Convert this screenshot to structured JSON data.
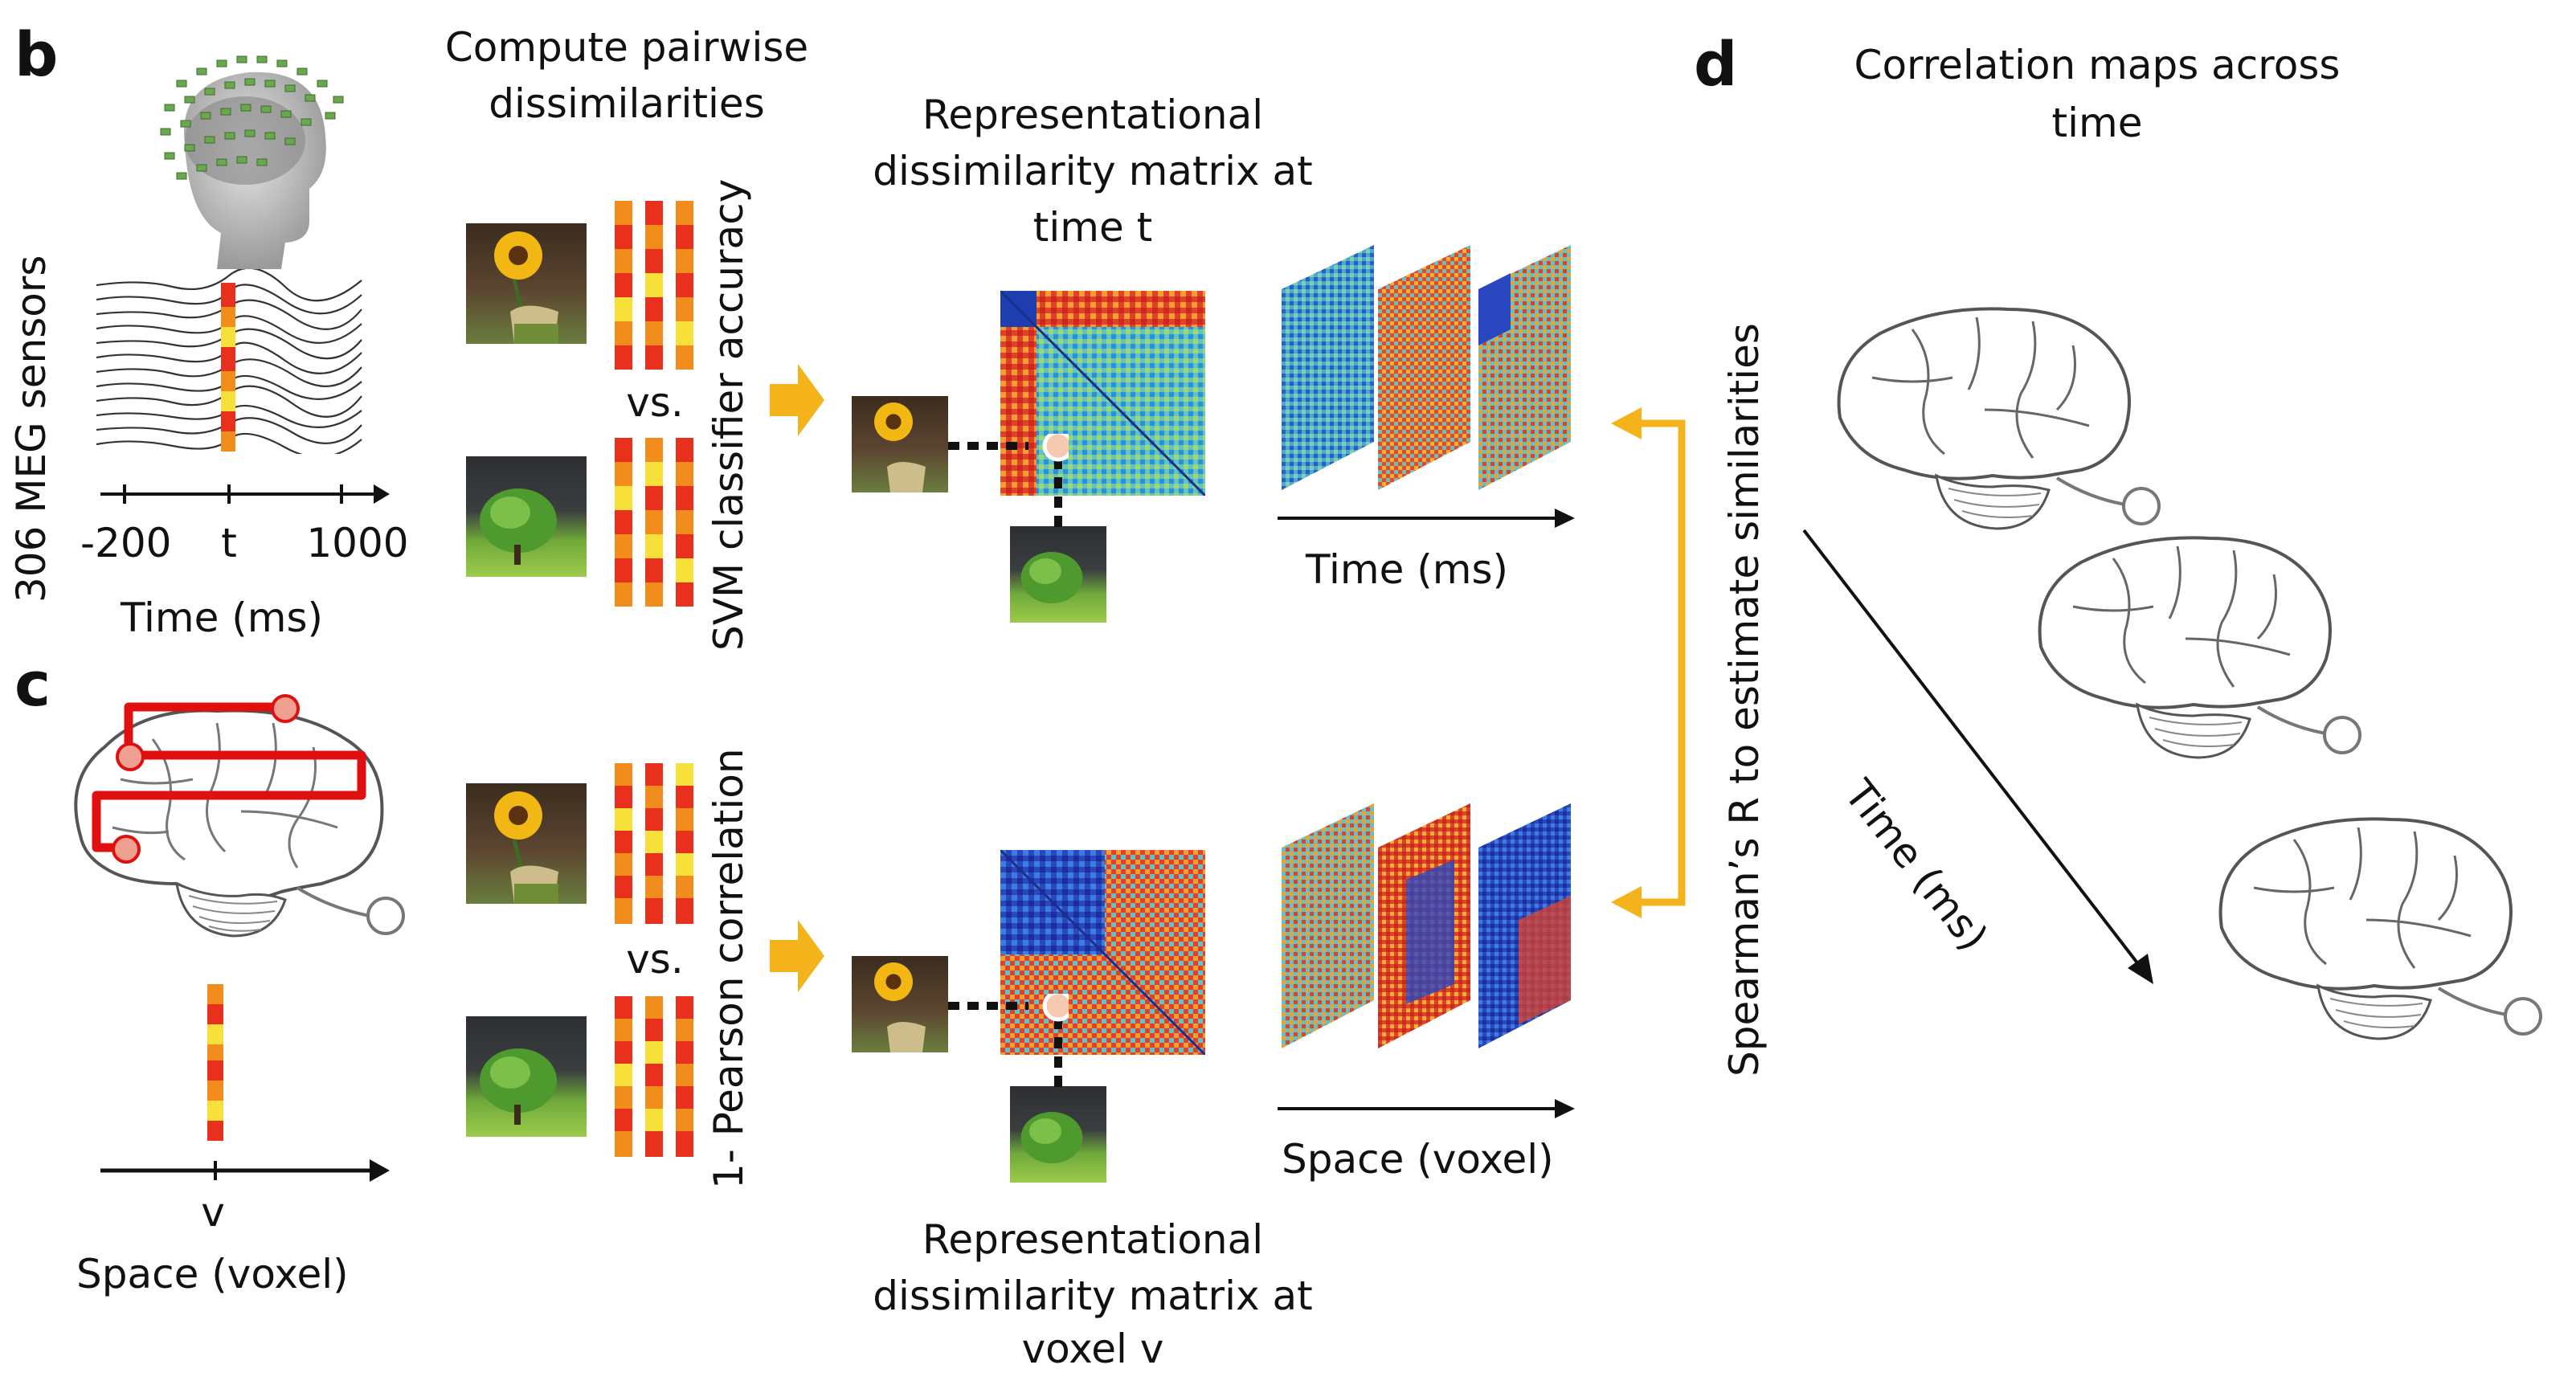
{
  "panel_b": {
    "letter": "b",
    "sensors_label": "306 MEG sensors",
    "axis_ticks": [
      "-200",
      "t",
      "1000"
    ],
    "axis_label": "Time (ms)"
  },
  "panel_c": {
    "letter": "c",
    "axis_tick": "v",
    "axis_label": "Space (voxel)"
  },
  "panel_d": {
    "letter": "d",
    "title": "Correlation maps across time",
    "title_lines": [
      "Correlation maps across",
      "time"
    ],
    "time_label": "Time (ms)"
  },
  "compute": {
    "title_lines": [
      "Compute pairwise",
      "dissimilarities"
    ],
    "vs_label": "vs.",
    "svm_label": "SVM classifier accuracy",
    "pearson_label": "1- Pearson correlation"
  },
  "rdm_time": {
    "title_lines": [
      "Representational",
      "dissimilarity matrix at",
      "time t"
    ]
  },
  "rdm_voxel": {
    "title_lines": [
      "Representational",
      "dissimilarity matrix at",
      "voxel v"
    ]
  },
  "stacks": {
    "time_axis_label": "Time (ms)",
    "space_axis_label": "Space (voxel)"
  },
  "spearman_label": "Spearman’s R to estimate similarities",
  "colors": {
    "accent_arrow": "#f5b31b",
    "matrix_red": "#d7301f",
    "matrix_blue": "#1f3fb0",
    "matrix_cyan": "#3ec6d1",
    "strip_red": "#e8301c",
    "strip_orange": "#f28c1c",
    "strip_yellow": "#f7e03a"
  }
}
